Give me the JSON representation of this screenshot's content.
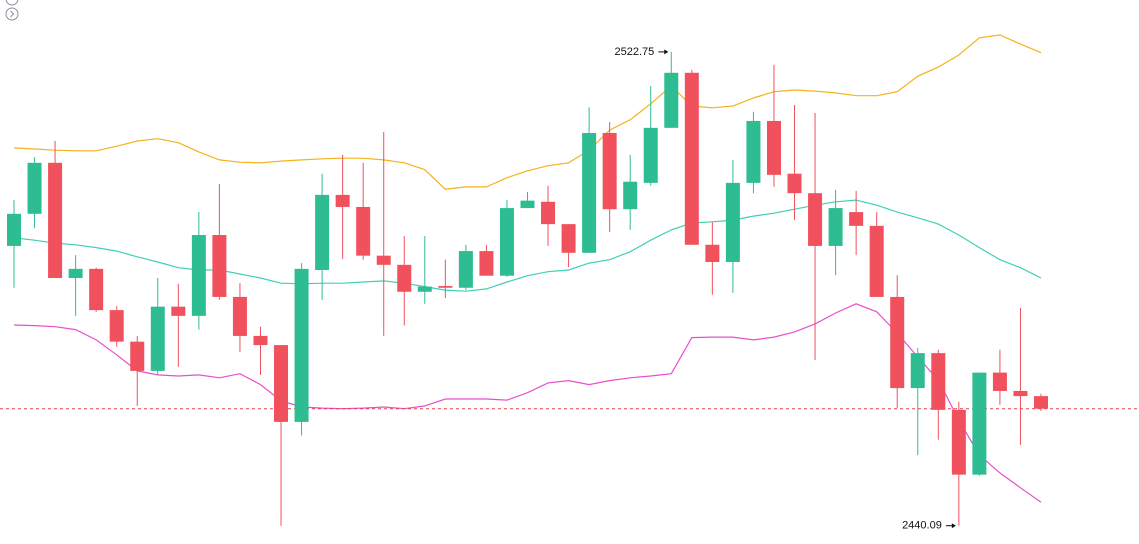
{
  "chart_data": {
    "type": "candlestick",
    "up_color": "#2ebd92",
    "down_color": "#f0515c",
    "ylim": [
      2436.9,
      2531.8
    ],
    "open": [
      2488.9,
      2494.5,
      2503.4,
      2483.3,
      2484.9,
      2477.7,
      2472.2,
      2467.1,
      2478.3,
      2476.7,
      2490.8,
      2480.0,
      2473.2,
      2471.6,
      2458.2,
      2484.7,
      2497.8,
      2495.7,
      2487.2,
      2485.6,
      2480.9,
      2481.9,
      2481.6,
      2488.0,
      2483.7,
      2495.5,
      2496.6,
      2492.7,
      2487.7,
      2508.6,
      2495.3,
      2499.9,
      2509.5,
      2519.1,
      2489.1,
      2486.1,
      2499.9,
      2510.7,
      2501.5,
      2498.1,
      2488.9,
      2494.8,
      2492.4,
      2480.0,
      2464.1,
      2470.2,
      2460.3,
      2449.0,
      2466.8,
      2463.6,
      2462.7
    ],
    "high": [
      2496.9,
      2504.4,
      2507.2,
      2487.3,
      2485.1,
      2478.4,
      2473.2,
      2483.3,
      2482.3,
      2494.8,
      2499.7,
      2482.4,
      2474.8,
      2471.6,
      2485.9,
      2501.5,
      2504.8,
      2503.4,
      2508.8,
      2490.6,
      2490.6,
      2486.5,
      2489.1,
      2489.1,
      2496.9,
      2498.3,
      2499.4,
      2492.7,
      2513.1,
      2510.5,
      2504.8,
      2516.8,
      2522.75,
      2519.6,
      2493.1,
      2503.9,
      2512.3,
      2520.5,
      2513.5,
      2512.1,
      2498.7,
      2498.5,
      2494.8,
      2483.8,
      2471.1,
      2470.8,
      2461.7,
      2466.8,
      2470.8,
      2478.1,
      2463.1
    ],
    "low": [
      2481.6,
      2492.0,
      2483.3,
      2476.7,
      2477.4,
      2471.3,
      2461.0,
      2466.4,
      2467.8,
      2474.3,
      2479.5,
      2470.4,
      2466.4,
      2440.09,
      2455.8,
      2479.5,
      2486.6,
      2486.5,
      2473.2,
      2475.0,
      2478.8,
      2479.8,
      2481.2,
      2483.7,
      2483.5,
      2495.5,
      2488.9,
      2485.2,
      2487.7,
      2491.3,
      2491.7,
      2499.4,
      2509.5,
      2489.1,
      2480.4,
      2480.7,
      2498.1,
      2499.2,
      2493.4,
      2469.0,
      2483.8,
      2487.3,
      2480.0,
      2460.6,
      2452.4,
      2455.1,
      2440.09,
      2448.8,
      2461.2,
      2454.2,
      2460.1
    ],
    "close": [
      2494.5,
      2503.4,
      2483.3,
      2484.9,
      2477.7,
      2472.2,
      2467.1,
      2478.3,
      2476.7,
      2490.8,
      2480.0,
      2473.2,
      2471.6,
      2458.2,
      2484.9,
      2497.8,
      2495.7,
      2487.2,
      2485.6,
      2480.9,
      2481.8,
      2481.6,
      2488.0,
      2483.7,
      2495.5,
      2496.8,
      2492.7,
      2487.7,
      2508.6,
      2495.3,
      2500.1,
      2509.5,
      2519.1,
      2489.1,
      2486.1,
      2499.9,
      2510.7,
      2501.3,
      2498.1,
      2488.9,
      2495.5,
      2492.4,
      2480.0,
      2464.1,
      2470.2,
      2460.3,
      2449.0,
      2466.8,
      2463.6,
      2462.7,
      2460.5
    ],
    "bands": [
      {
        "color": "#f5b21c",
        "values": [
          2506.0,
          2505.8,
          2505.6,
          2505.5,
          2505.5,
          2506.3,
          2507.2,
          2507.6,
          2506.9,
          2505.3,
          2503.9,
          2503.5,
          2503.4,
          2503.7,
          2503.9,
          2504.1,
          2504.2,
          2504.2,
          2503.9,
          2503.4,
          2502.2,
          2498.8,
          2499.2,
          2499.2,
          2500.8,
          2502.0,
          2502.9,
          2503.4,
          2505.6,
          2509.1,
          2510.9,
          2513.7,
          2516.8,
          2513.3,
          2513.0,
          2513.3,
          2514.7,
          2515.8,
          2516.1,
          2515.9,
          2515.6,
          2515.1,
          2515.1,
          2515.8,
          2518.5,
          2520.1,
          2522.2,
          2525.2,
          2525.7,
          2524.1,
          2522.6
        ]
      },
      {
        "color": "#3fd0b6",
        "values": [
          2490.3,
          2489.9,
          2489.4,
          2489.1,
          2488.6,
          2488.0,
          2487.0,
          2486.1,
          2485.1,
          2484.7,
          2484.7,
          2484.0,
          2483.3,
          2482.4,
          2482.3,
          2482.4,
          2482.4,
          2482.6,
          2482.8,
          2482.4,
          2481.8,
          2481.2,
          2481.0,
          2481.4,
          2482.6,
          2483.7,
          2484.4,
          2484.7,
          2485.9,
          2486.5,
          2487.9,
          2489.9,
          2491.7,
          2492.9,
          2493.1,
          2493.4,
          2494.1,
          2494.6,
          2495.3,
          2496.0,
          2496.6,
          2496.9,
          2496.0,
          2494.8,
          2493.8,
          2492.7,
          2490.8,
          2488.6,
          2486.5,
          2485.1,
          2483.3
        ]
      },
      {
        "color": "#e84fcf",
        "values": [
          2475.1,
          2475.0,
          2474.8,
          2474.3,
          2472.5,
          2469.9,
          2467.1,
          2466.4,
          2466.2,
          2466.4,
          2465.9,
          2466.6,
          2464.7,
          2461.9,
          2460.8,
          2460.6,
          2460.5,
          2460.6,
          2460.8,
          2460.5,
          2461.0,
          2462.2,
          2462.2,
          2462.2,
          2462.0,
          2463.3,
          2465.0,
          2465.4,
          2464.7,
          2465.4,
          2465.9,
          2466.2,
          2466.6,
          2472.9,
          2473.0,
          2473.0,
          2472.5,
          2473.0,
          2473.9,
          2475.3,
          2477.2,
          2478.8,
          2477.4,
          2473.7,
          2469.5,
          2465.5,
          2458.5,
          2452.4,
          2449.3,
          2446.7,
          2444.2
        ]
      }
    ],
    "last_price_line": true,
    "last_price_color": "#e8414b",
    "high_label": "2522.75",
    "low_label": "2440.09"
  }
}
